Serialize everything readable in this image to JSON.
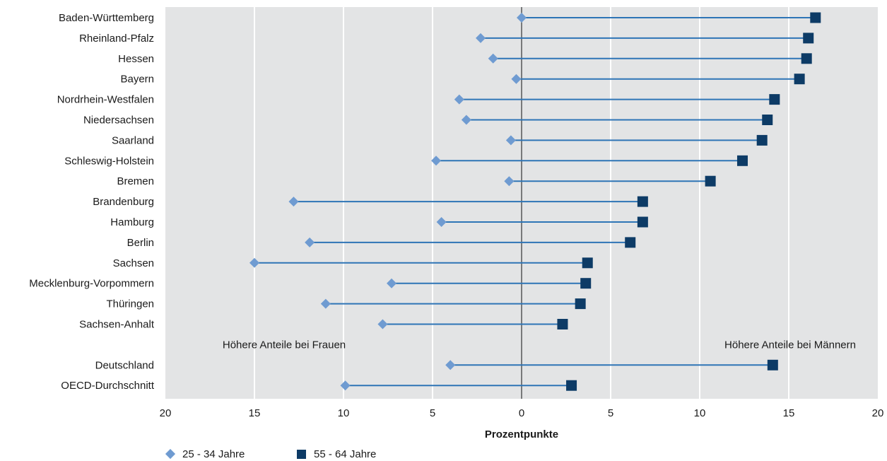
{
  "chart_data": {
    "type": "dumbbell",
    "xlabel": "Prozentpunkte",
    "xlim": [
      -20,
      20
    ],
    "x_ticks": [
      -20,
      -15,
      -10,
      -5,
      0,
      5,
      10,
      15,
      20
    ],
    "x_tick_labels": [
      "20",
      "15",
      "10",
      "5",
      "0",
      "5",
      "10",
      "15",
      "20"
    ],
    "grid": true,
    "legend_position": "bottom-left",
    "categories": [
      "Baden-Württemberg",
      "Rheinland-Pfalz",
      "Hessen",
      "Bayern",
      "Nordrhein-Westfalen",
      "Niedersachsen",
      "Saarland",
      "Schleswig-Holstein",
      "Bremen",
      "Brandenburg",
      "Hamburg",
      "Berlin",
      "Sachsen",
      "Mecklenburg-Vorpommern",
      "Thüringen",
      "Sachsen-Anhalt",
      "",
      "Deutschland",
      "OECD-Durchschnitt"
    ],
    "series": [
      {
        "name": "25 - 34 Jahre",
        "marker": "diamond",
        "color": "#6f9bd1",
        "values": [
          0.0,
          -2.3,
          -1.6,
          -0.3,
          -3.5,
          -3.1,
          -0.6,
          -4.8,
          -0.7,
          -12.8,
          -4.5,
          -11.9,
          -15.0,
          -7.3,
          -11.0,
          -7.8,
          null,
          -4.0,
          -9.9
        ]
      },
      {
        "name": "55 - 64 Jahre",
        "marker": "square",
        "color": "#0d3b66",
        "values": [
          16.5,
          16.1,
          16.0,
          15.6,
          14.2,
          13.8,
          13.5,
          12.4,
          10.6,
          6.8,
          6.8,
          6.1,
          3.7,
          3.6,
          3.3,
          2.3,
          null,
          14.1,
          2.8
        ]
      }
    ],
    "annotations": {
      "left": "Höhere Anteile bei Frauen",
      "right": "Höhere Anteile bei Männern"
    },
    "colors": {
      "plot_background": "#e3e4e5",
      "grid": "#ffffff",
      "connector": "#2e75b6",
      "zero_line": "#333333"
    }
  }
}
